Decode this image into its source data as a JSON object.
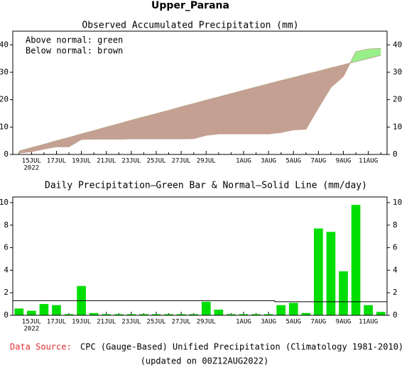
{
  "title": "Upper_Parana",
  "footer": {
    "source_label": "Data Source:",
    "source": "CPC (Gauge-Based) Unified Precipitation (Climatology 1981-2010)",
    "updated": "(updated on 00Z12AUG2022)"
  },
  "chart_data": [
    {
      "type": "area",
      "title": "Observed Accumulated Precipitation (mm)",
      "annotations": [
        "Above normal: green",
        "Below normal: brown"
      ],
      "above_color": "#98f08a",
      "below_color": "#c4a092",
      "categories": [
        null,
        "15JUL",
        null,
        "17JUL",
        null,
        "19JUL",
        null,
        "21JUL",
        null,
        "23JUL",
        null,
        "25JUL",
        null,
        "27JUL",
        null,
        "29JUL",
        null,
        null,
        "1AUG",
        null,
        "3AUG",
        null,
        "5AUG",
        null,
        "7AUG",
        null,
        "9AUG",
        null,
        "11AUG",
        null
      ],
      "year_label": "2022",
      "series": [
        {
          "name": "Observed",
          "values": [
            0.5,
            1.0,
            2.0,
            2.8,
            2.8,
            5.5,
            5.6,
            5.6,
            5.6,
            5.7,
            5.7,
            5.7,
            5.7,
            5.7,
            5.8,
            7.0,
            7.5,
            7.5,
            7.5,
            7.5,
            7.5,
            8.0,
            9.0,
            9.2,
            17.0,
            24.5,
            28.5,
            37.5,
            38.5,
            38.7
          ]
        },
        {
          "name": "Normal",
          "values": [
            1.2,
            2.5,
            3.7,
            5.0,
            6.2,
            7.5,
            8.7,
            10.0,
            11.2,
            12.5,
            13.7,
            14.9,
            16.1,
            17.4,
            18.6,
            19.8,
            21.0,
            22.2,
            23.4,
            24.6,
            25.8,
            27.0,
            28.1,
            29.3,
            30.4,
            31.6,
            32.7,
            33.9,
            35.0,
            36.2
          ]
        }
      ],
      "ylim": [
        0,
        45
      ],
      "yticks": [
        0,
        10,
        20,
        30,
        40
      ]
    },
    {
      "type": "bar",
      "title": "Daily Precipitation—Green Bar & Normal—Solid Line (mm/day)",
      "categories": [
        null,
        "15JUL",
        null,
        "17JUL",
        null,
        "19JUL",
        null,
        "21JUL",
        null,
        "23JUL",
        null,
        "25JUL",
        null,
        "27JUL",
        null,
        "29JUL",
        null,
        null,
        "1AUG",
        null,
        "3AUG",
        null,
        "5AUG",
        null,
        "7AUG",
        null,
        "9AUG",
        null,
        "11AUG",
        null
      ],
      "year_label": "2022",
      "color": "#00dd00",
      "values": [
        0.6,
        0.4,
        1.0,
        0.9,
        0.1,
        2.6,
        0.2,
        0.1,
        0.1,
        0.1,
        0.1,
        0.1,
        0.1,
        0.1,
        0.1,
        1.2,
        0.5,
        0.1,
        0.1,
        0.1,
        0.1,
        0.9,
        1.1,
        0.2,
        7.7,
        7.4,
        3.9,
        9.8,
        0.9,
        0.3
      ],
      "normal": {
        "color": "#000000",
        "values": [
          1.3,
          1.3,
          1.3,
          1.3,
          1.3,
          1.3,
          1.3,
          1.3,
          1.3,
          1.3,
          1.3,
          1.3,
          1.3,
          1.3,
          1.3,
          1.3,
          1.3,
          1.3,
          1.3,
          1.3,
          1.3,
          1.2,
          1.2,
          1.2,
          1.2,
          1.2,
          1.2,
          1.2,
          1.2,
          1.2
        ]
      },
      "ylim": [
        0,
        10.5
      ],
      "yticks": [
        0,
        2,
        4,
        6,
        8,
        10
      ]
    }
  ]
}
